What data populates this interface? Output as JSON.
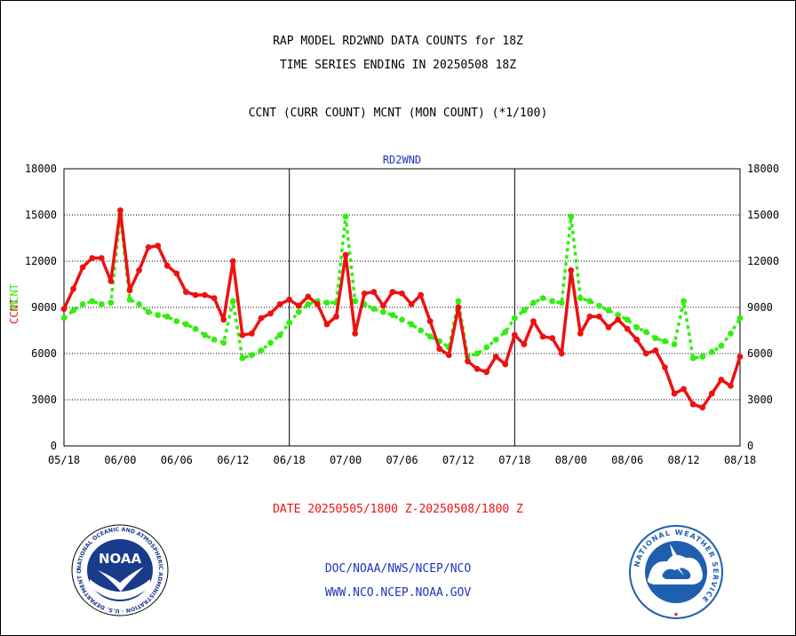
{
  "header": {
    "title_line1": "RAP MODEL RD2WND DATA COUNTS for 18Z",
    "title_line2": "TIME SERIES ENDING IN 20250508 18Z",
    "subtitle": "CCNT (CURR COUNT) MCNT (MON COUNT) (*1/100)"
  },
  "footer": {
    "date_range": "DATE 20250505/1800 Z-20250508/1800 Z",
    "org_line": "DOC/NOAA/NWS/NCEP/NCO",
    "website": "WWW.NCO.NCEP.NOAA.GOV"
  },
  "logos": {
    "noaa_text": "NOAA",
    "noaa_ring": "NATIONAL OCEANIC AND ATMOSPHERIC ADMINISTRATION · U.S. DEPARTMENT OF COMMERCE ·",
    "nws_ring": "NATIONAL WEATHER SERVICE"
  },
  "colors": {
    "ccnt": "#ee1111",
    "mcnt": "#33ee11",
    "footer_date": "#ee1111",
    "footer_org": "#2233bb",
    "panel_label": "#2233bb",
    "noaa_blue": "#1a3a8c",
    "nws_blue": "#1f5fb0"
  },
  "chart_data": {
    "type": "line",
    "title": "RD2WND",
    "ylabel_left": "CCNT",
    "ylabel_right": "MCNT",
    "ylim": [
      0,
      18000
    ],
    "yticks": [
      0,
      3000,
      6000,
      9000,
      12000,
      15000,
      18000
    ],
    "xlim": [
      0,
      72
    ],
    "xticks": [
      0,
      6,
      12,
      18,
      24,
      30,
      36,
      42,
      48,
      54,
      60,
      66,
      72
    ],
    "xtick_labels": [
      "05/18",
      "06/00",
      "06/06",
      "06/12",
      "06/18",
      "07/00",
      "07/06",
      "07/12",
      "07/18",
      "08/00",
      "08/06",
      "08/12",
      "08/18"
    ],
    "day_dividers": [
      24,
      48
    ],
    "grid": true,
    "series": [
      {
        "name": "CCNT",
        "style": "solid",
        "x": [
          0,
          1,
          2,
          3,
          4,
          5,
          6,
          7,
          8,
          9,
          10,
          11,
          12,
          13,
          14,
          15,
          16,
          17,
          18,
          19,
          20,
          21,
          22,
          23,
          24,
          25,
          26,
          27,
          28,
          29,
          30,
          31,
          32,
          33,
          34,
          35,
          36,
          37,
          38,
          39,
          40,
          41,
          42,
          43,
          44,
          45,
          46,
          47,
          48,
          49,
          50,
          51,
          52,
          53,
          54,
          55,
          56,
          57,
          58,
          59,
          60,
          61,
          62,
          63,
          64,
          65,
          66,
          67,
          68,
          69,
          70,
          71,
          72
        ],
        "values": [
          8900,
          10200,
          11600,
          12200,
          12200,
          10700,
          15300,
          10100,
          11400,
          12900,
          13000,
          11700,
          11200,
          10000,
          9800,
          9800,
          9600,
          8200,
          12000,
          7200,
          7300,
          8300,
          8600,
          9200,
          9500,
          9100,
          9700,
          9200,
          7900,
          8400,
          12400,
          7300,
          9900,
          10000,
          9100,
          10000,
          9900,
          9200,
          9800,
          8100,
          6300,
          5900,
          9000,
          5500,
          5000,
          4800,
          5800,
          5300,
          7200,
          6600,
          8100,
          7100,
          7000,
          6000,
          11400,
          7300,
          8400,
          8400,
          7700,
          8200,
          7600,
          6900,
          6000,
          6200,
          5100,
          3400,
          3700,
          2700,
          2500,
          3400,
          4300,
          3900,
          5800
        ]
      },
      {
        "name": "MCNT",
        "style": "dashed",
        "x": [
          0,
          1,
          2,
          3,
          4,
          5,
          6,
          7,
          8,
          9,
          10,
          11,
          12,
          13,
          14,
          15,
          16,
          17,
          18,
          19,
          20,
          21,
          22,
          23,
          24,
          25,
          26,
          27,
          28,
          29,
          30,
          31,
          32,
          33,
          34,
          35,
          36,
          37,
          38,
          39,
          40,
          41,
          42,
          43,
          44,
          45,
          46,
          47,
          48,
          49,
          50,
          51,
          52,
          53,
          54,
          55,
          56,
          57,
          58,
          59,
          60,
          61,
          62,
          63,
          64,
          65,
          66,
          67,
          68,
          69,
          70,
          71,
          72
        ],
        "values": [
          8300,
          8800,
          9200,
          9400,
          9200,
          9300,
          15000,
          9500,
          9200,
          8700,
          8500,
          8400,
          8100,
          7900,
          7600,
          7200,
          6900,
          6700,
          9400,
          5700,
          5900,
          6200,
          6700,
          7200,
          8000,
          8700,
          9200,
          9400,
          9300,
          9300,
          14900,
          9400,
          9200,
          8900,
          8700,
          8500,
          8200,
          7900,
          7500,
          7100,
          6800,
          6400,
          9400,
          5800,
          6000,
          6400,
          6900,
          7400,
          8300,
          8800,
          9300,
          9600,
          9400,
          9300,
          14900,
          9600,
          9400,
          9100,
          8800,
          8500,
          8200,
          7700,
          7400,
          7000,
          6800,
          6600,
          9400,
          5700,
          5800,
          6100,
          6500,
          7300,
          8300
        ]
      }
    ]
  }
}
